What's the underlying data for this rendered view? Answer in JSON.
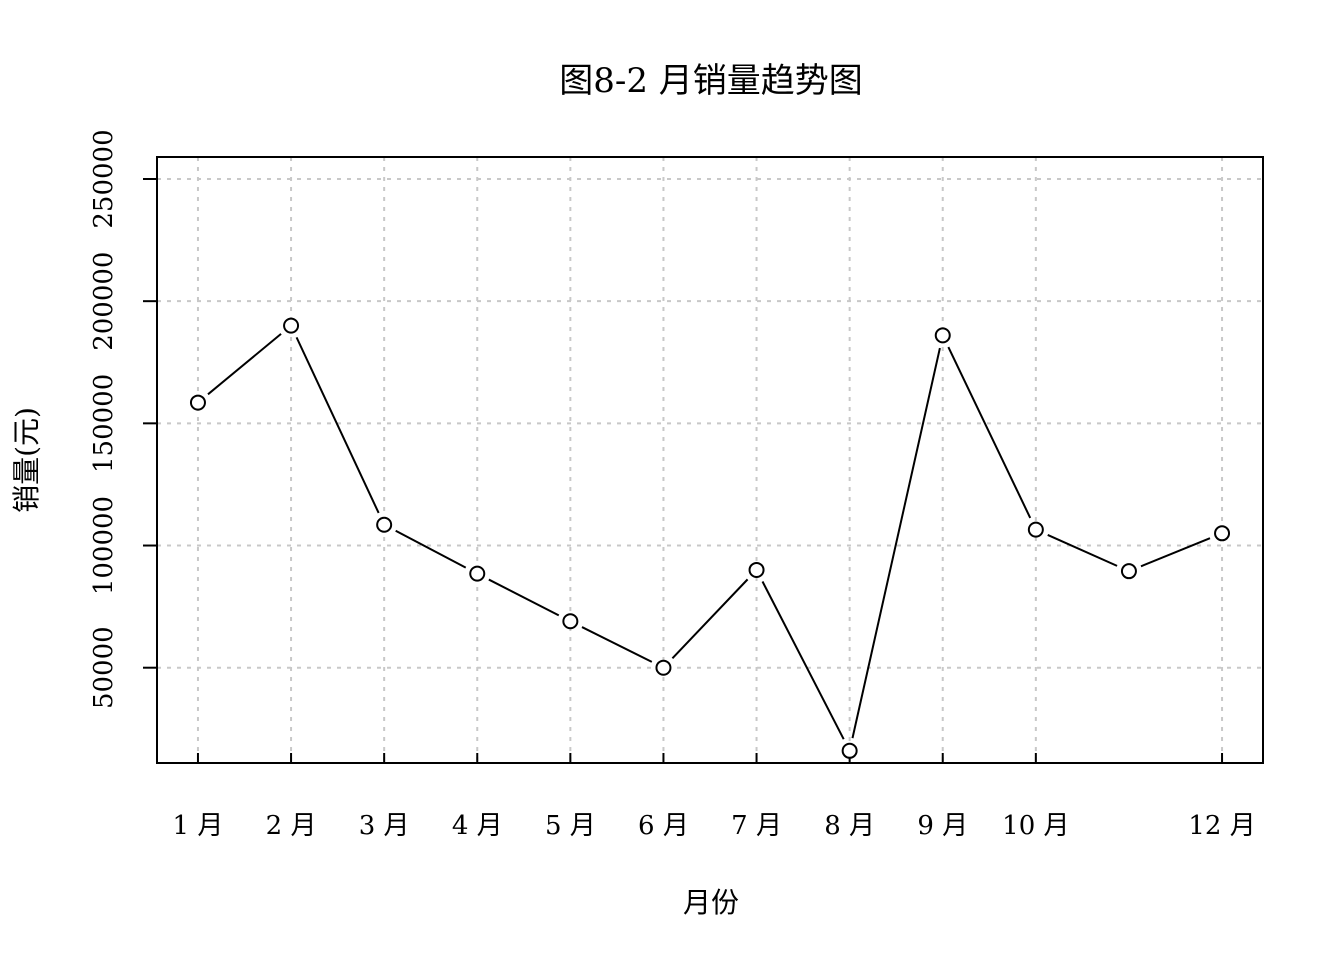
{
  "chart_data": {
    "type": "line",
    "title": "图8-2 月销量趋势图",
    "xlabel": "月份",
    "ylabel": "销量(元)",
    "x_positions": [
      1,
      2,
      3,
      4,
      5,
      6,
      7,
      8,
      9,
      10,
      11,
      12
    ],
    "x_tick_positions": [
      1,
      2,
      3,
      4,
      5,
      6,
      7,
      8,
      9,
      10,
      12
    ],
    "x_tick_labels": [
      "1 月",
      "2 月",
      "3 月",
      "4 月",
      "5 月",
      "6 月",
      "7 月",
      "8 月",
      "9 月",
      "10 月",
      "12 月"
    ],
    "values": [
      158500,
      190000,
      108500,
      88500,
      69000,
      50000,
      90000,
      16000,
      186000,
      106500,
      89500,
      105000
    ],
    "yticks": [
      50000,
      100000,
      150000,
      200000,
      250000
    ],
    "ylim": [
      11000,
      259000
    ],
    "xlim": [
      0.56,
      12.44
    ],
    "grid": true,
    "marker": "open-circle",
    "colors": {
      "line": "#000000",
      "grid": "#c8c8c8",
      "frame": "#000000"
    }
  }
}
